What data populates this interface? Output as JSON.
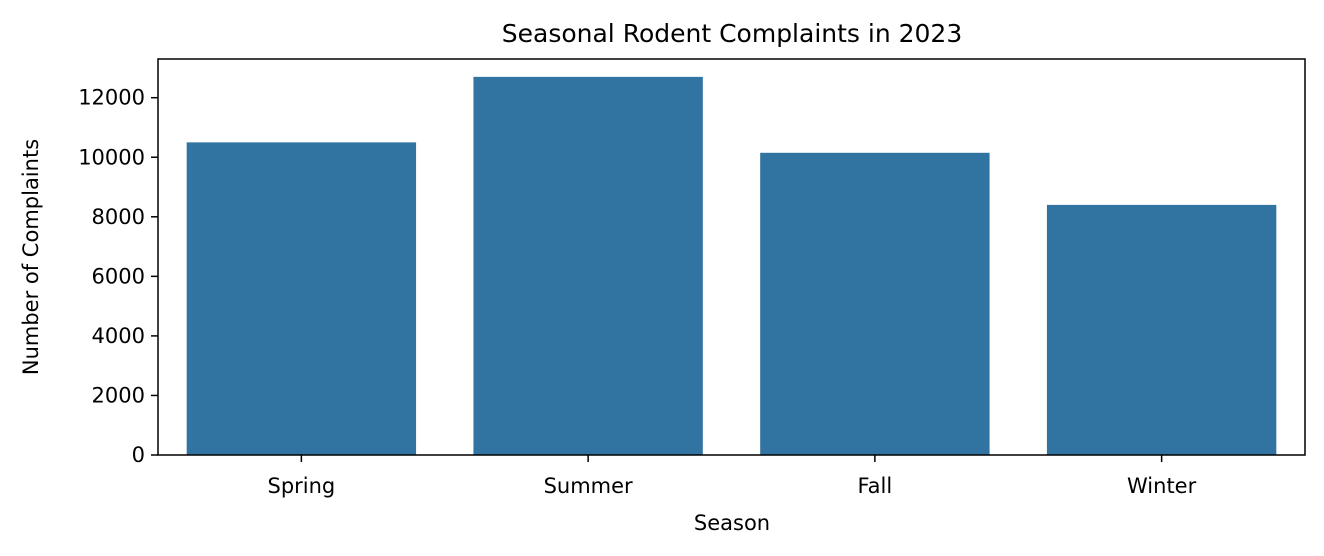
{
  "chart_data": {
    "type": "bar",
    "title": "Seasonal Rodent Complaints in 2023",
    "xlabel": "Season",
    "ylabel": "Number of Complaints",
    "categories": [
      "Spring",
      "Summer",
      "Fall",
      "Winter"
    ],
    "values": [
      10500,
      12700,
      10150,
      8400
    ],
    "ylim": [
      0,
      13300
    ],
    "yticks": [
      0,
      2000,
      4000,
      6000,
      8000,
      10000,
      12000
    ],
    "grid": false,
    "bar_color": "#3274a1"
  }
}
